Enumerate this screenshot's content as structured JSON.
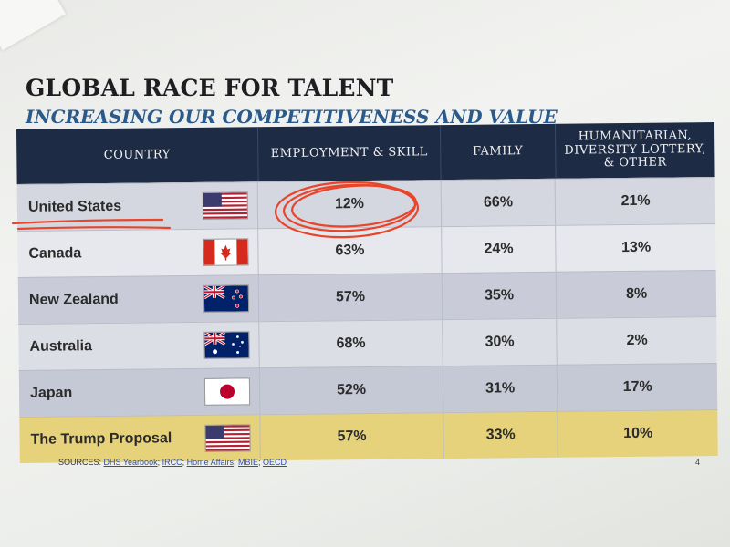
{
  "title": "GLOBAL RACE FOR TALENT",
  "subtitle": "INCREASING OUR COMPETITIVENESS AND VALUE",
  "table": {
    "headers": [
      "COUNTRY",
      "EMPLOYMENT & SKILL",
      "FAMILY",
      "HUMANITARIAN, DIVERSITY LOTTERY, & OTHER"
    ],
    "rows": [
      {
        "country": "United States",
        "flag": "us-flag-icon",
        "employment": "12%",
        "family": "66%",
        "humanitarian": "21%"
      },
      {
        "country": "Canada",
        "flag": "canada-flag-icon",
        "employment": "63%",
        "family": "24%",
        "humanitarian": "13%"
      },
      {
        "country": "New Zealand",
        "flag": "new-zealand-flag-icon",
        "employment": "57%",
        "family": "35%",
        "humanitarian": "8%"
      },
      {
        "country": "Australia",
        "flag": "australia-flag-icon",
        "employment": "68%",
        "family": "30%",
        "humanitarian": "2%"
      },
      {
        "country": "Japan",
        "flag": "japan-flag-icon",
        "employment": "52%",
        "family": "31%",
        "humanitarian": "17%"
      },
      {
        "country": "The Trump Proposal",
        "flag": "us-flag-icon",
        "employment": "57%",
        "family": "33%",
        "humanitarian": "10%"
      }
    ]
  },
  "sources": {
    "label": "SOURCES:",
    "items": [
      "DHS Yearbook",
      "IRCC",
      "Home Affairs",
      "MBIE",
      "OECD"
    ]
  },
  "page_number": "4",
  "colors": {
    "header_bg": "#1d2b44",
    "subtitle": "#2a5a8c",
    "highlight_row": "#e6d27a",
    "annotation_red": "#e8452a"
  }
}
